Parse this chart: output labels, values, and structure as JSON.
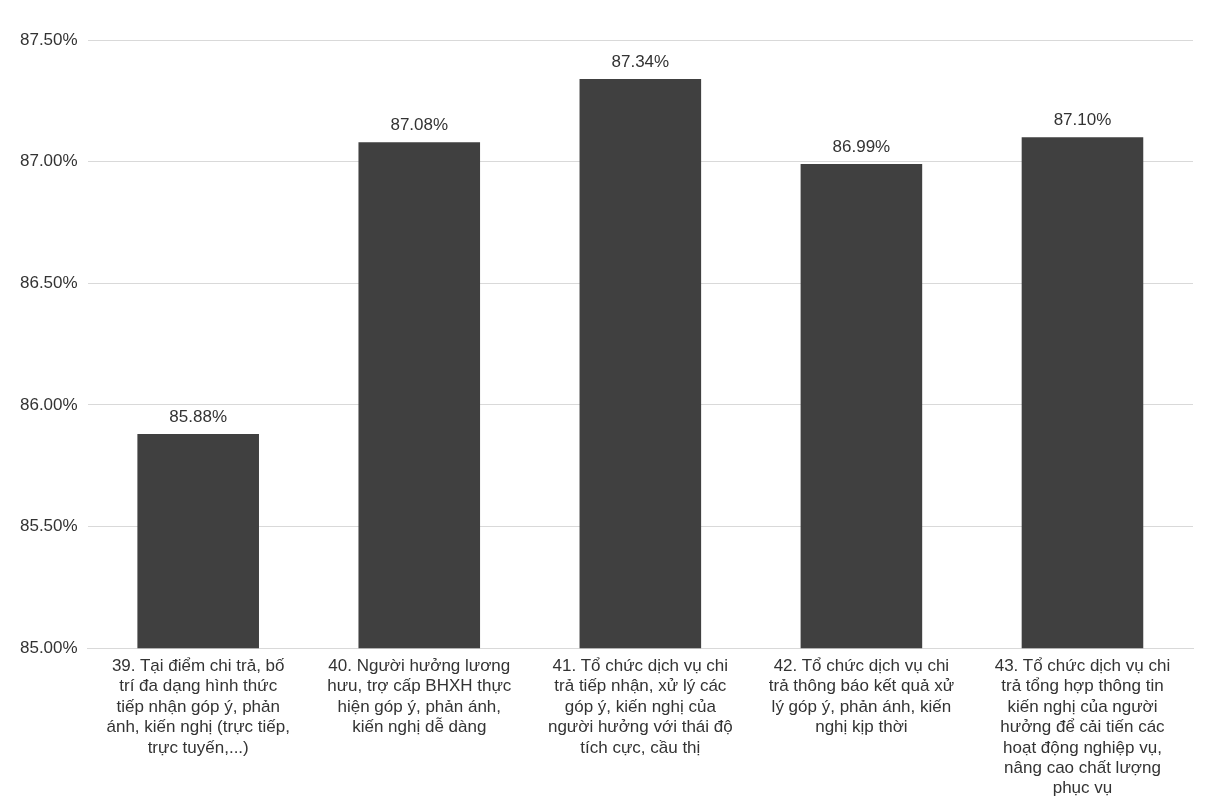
{
  "chart_data": {
    "type": "bar",
    "categories": [
      "39. Tại điểm chi trả, bố trí đa dạng hình thức tiếp nhận góp ý, phản ánh, kiến nghị (trực tiếp, trực tuyến,...)",
      "40. Người hưởng lương hưu, trợ cấp BHXH thực hiện góp ý, phản ánh, kiến nghị dễ dàng",
      "41. Tổ chức dịch vụ chi trả tiếp nhận, xử lý các góp ý, kiến nghị của người hưởng với thái độ tích cực, cầu thị",
      "42. Tổ chức dịch vụ chi trả thông báo kết quả xử lý góp ý, phản ánh, kiến nghị kịp thời",
      "43. Tổ chức dịch vụ chi trả tổng hợp thông tin kiến nghị của người hưởng để cải tiến các hoạt động nghiệp vụ, nâng cao chất lượng phục vụ"
    ],
    "values": [
      85.88,
      87.08,
      87.34,
      86.99,
      87.1
    ],
    "value_labels": [
      "85.88%",
      "87.08%",
      "87.34%",
      "86.99%",
      "87.10%"
    ],
    "color": "#404040",
    "ylim": [
      85.0,
      87.5
    ],
    "yticks": [
      {
        "value": 85.0,
        "label": "85.00%"
      },
      {
        "value": 85.5,
        "label": "85.50%"
      },
      {
        "value": 86.0,
        "label": "86.00%"
      },
      {
        "value": 86.5,
        "label": "86.50%"
      },
      {
        "value": 87.0,
        "label": "87.00%"
      },
      {
        "value": 87.5,
        "label": "87.50%"
      }
    ],
    "grid": "y"
  }
}
